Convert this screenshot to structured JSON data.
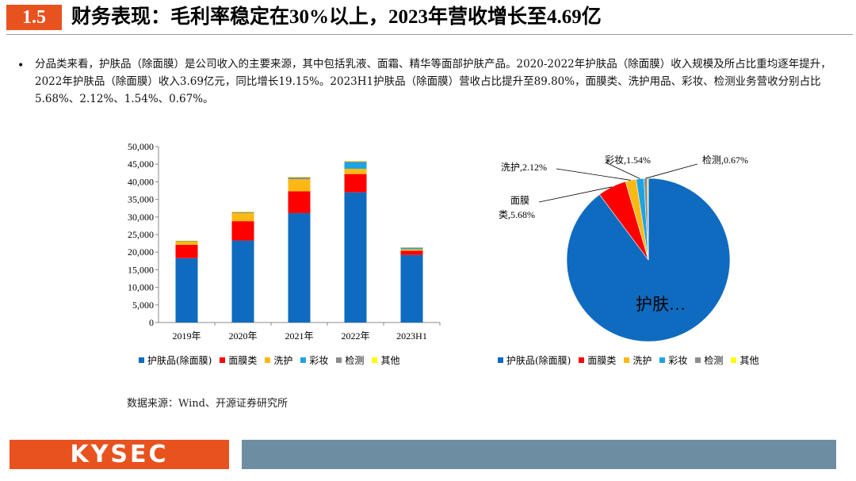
{
  "header": {
    "section_number": "1.5",
    "title": "财务表现：毛利率稳定在30%以上，2023年营收增长至4.69亿"
  },
  "bullet": {
    "text": "分品类来看，护肤品（除面膜）是公司收入的主要来源，其中包括乳液、面霜、精华等面部护肤产品。2020-2022年护肤品（除面膜）收入规模及所占比重均逐年提升，2022年护肤品（除面膜）收入3.69亿元，同比增长19.15%。2023H1护肤品（除面膜）营收占比提升至89.80%，面膜类、洗护用品、彩妆、检测业务营收分别占比5.68%、2.12%、1.54%、0.67%。"
  },
  "colors": {
    "header_accent": "#e8521f",
    "footer_bar": "#6d8da3"
  },
  "chart_data": [
    {
      "type": "bar",
      "stacked": true,
      "categories": [
        "2019年",
        "2020年",
        "2021年",
        "2022年",
        "2023H1"
      ],
      "y_ticks": [
        "0",
        "5,000",
        "10,000",
        "15,000",
        "20,000",
        "25,000",
        "30,000",
        "35,000",
        "40,000",
        "45,000",
        "50,000"
      ],
      "ylim": [
        0,
        50000
      ],
      "grid": false,
      "legend_position": "bottom",
      "series": [
        {
          "name": "护肤品(除面膜)",
          "color": "#0f6bbf",
          "values": [
            18300,
            23300,
            31100,
            37000,
            19200
          ]
        },
        {
          "name": "面膜类",
          "color": "#ff0000",
          "values": [
            3800,
            5500,
            6200,
            5200,
            1200
          ]
        },
        {
          "name": "洗护",
          "color": "#fcb913",
          "values": [
            900,
            2300,
            3400,
            1500,
            450
          ]
        },
        {
          "name": "彩妆",
          "color": "#1fa3e0",
          "values": [
            0,
            0,
            0,
            1800,
            330
          ]
        },
        {
          "name": "检测",
          "color": "#8c8c8c",
          "values": [
            200,
            300,
            600,
            300,
            140
          ]
        },
        {
          "name": "其他",
          "color": "#ffff00",
          "values": [
            100,
            100,
            100,
            100,
            0
          ]
        }
      ]
    },
    {
      "type": "pie",
      "legend_position": "bottom",
      "slices": [
        {
          "name": "护肤品(除面膜)",
          "value": 89.8,
          "label": "护肤…",
          "color": "#0f6bbf"
        },
        {
          "name": "面膜类",
          "value": 5.68,
          "label_line1": "面膜",
          "label_line2": "类,5.68%",
          "color": "#ff0000"
        },
        {
          "name": "洗护",
          "value": 2.12,
          "label": "洗护,2.12%",
          "color": "#fcb913"
        },
        {
          "name": "彩妆",
          "value": 1.54,
          "label": "彩妆,1.54%",
          "color": "#1fa3e0"
        },
        {
          "name": "检测",
          "value": 0.67,
          "label": "检测,0.67%",
          "color": "#8c8c8c"
        },
        {
          "name": "其他",
          "value": 0.19,
          "color": "#ffff00"
        }
      ]
    }
  ],
  "source": "数据来源：Wind、开源证券研究所",
  "footer": {
    "logo": "KYSEC"
  }
}
